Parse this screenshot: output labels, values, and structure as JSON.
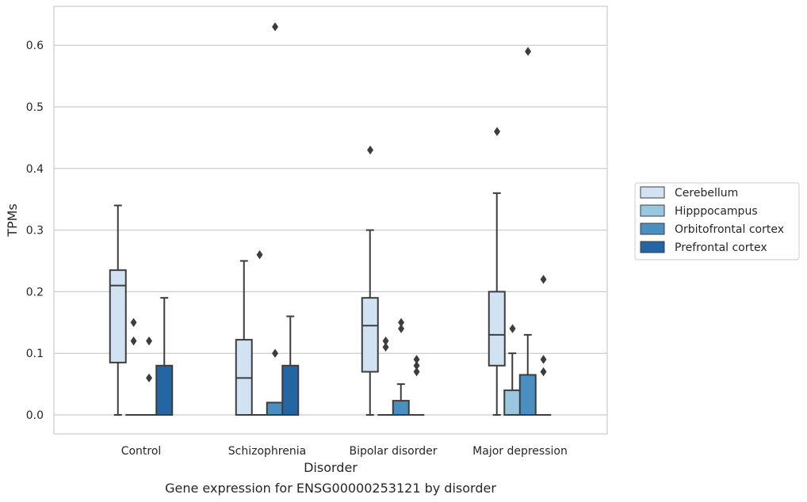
{
  "chart_data": {
    "type": "boxplot",
    "caption": "Gene expression for ENSG00000253121 by disorder",
    "xlabel": "Disorder",
    "ylabel": "TPMs",
    "ylim": [
      -0.031,
      0.662
    ],
    "yticks": [
      0.0,
      0.1,
      0.2,
      0.3,
      0.4,
      0.5,
      0.6
    ],
    "ytick_labels": [
      "0.0",
      "0.1",
      "0.2",
      "0.3",
      "0.4",
      "0.5",
      "0.6"
    ],
    "grid": "horizontal",
    "legend_position": "right",
    "categories": [
      "Control",
      "Schizophrenia",
      "Bipolar disorder",
      "Major depression"
    ],
    "series": [
      {
        "name": "Cerebellum",
        "color": "#d1e2f2",
        "boxes": [
          {
            "q1": 0.085,
            "median": 0.21,
            "q3": 0.235,
            "whislo": 0.0,
            "whishi": 0.34,
            "fliers": []
          },
          {
            "q1": 0.0,
            "median": 0.06,
            "q3": 0.122,
            "whislo": 0.0,
            "whishi": 0.25,
            "fliers": []
          },
          {
            "q1": 0.07,
            "median": 0.145,
            "q3": 0.19,
            "whislo": 0.0,
            "whishi": 0.3,
            "fliers": [
              0.43
            ]
          },
          {
            "q1": 0.08,
            "median": 0.13,
            "q3": 0.2,
            "whislo": 0.0,
            "whishi": 0.36,
            "fliers": [
              0.46
            ]
          }
        ]
      },
      {
        "name": "Hipppocampus",
        "color": "#9ac7e0",
        "boxes": [
          {
            "q1": 0.0,
            "median": 0.0,
            "q3": 0.0,
            "whislo": 0.0,
            "whishi": 0.0,
            "fliers": [
              0.15,
              0.12
            ]
          },
          {
            "q1": 0.0,
            "median": 0.0,
            "q3": 0.0,
            "whislo": 0.0,
            "whishi": 0.0,
            "fliers": [
              0.26
            ]
          },
          {
            "q1": 0.0,
            "median": 0.0,
            "q3": 0.0,
            "whislo": 0.0,
            "whishi": 0.0,
            "fliers": [
              0.12,
              0.11
            ]
          },
          {
            "q1": 0.0,
            "median": 0.0,
            "q3": 0.04,
            "whislo": 0.0,
            "whishi": 0.1,
            "fliers": [
              0.14
            ]
          }
        ]
      },
      {
        "name": "Orbitofrontal cortex",
        "color": "#4a8fc1",
        "boxes": [
          {
            "q1": 0.0,
            "median": 0.0,
            "q3": 0.0,
            "whislo": 0.0,
            "whishi": 0.0,
            "fliers": [
              0.12,
              0.06
            ]
          },
          {
            "q1": 0.0,
            "median": 0.0,
            "q3": 0.02,
            "whislo": 0.0,
            "whishi": 0.02,
            "fliers": [
              0.63,
              0.1
            ]
          },
          {
            "q1": 0.0,
            "median": 0.0,
            "q3": 0.023,
            "whislo": 0.0,
            "whishi": 0.05,
            "fliers": [
              0.15,
              0.14
            ]
          },
          {
            "q1": 0.0,
            "median": 0.0,
            "q3": 0.065,
            "whislo": 0.0,
            "whishi": 0.13,
            "fliers": [
              0.59
            ]
          }
        ]
      },
      {
        "name": "Prefrontal cortex",
        "color": "#2465a3",
        "boxes": [
          {
            "q1": 0.0,
            "median": 0.0,
            "q3": 0.08,
            "whislo": 0.0,
            "whishi": 0.19,
            "fliers": []
          },
          {
            "q1": 0.0,
            "median": 0.0,
            "q3": 0.08,
            "whislo": 0.0,
            "whishi": 0.16,
            "fliers": []
          },
          {
            "q1": 0.0,
            "median": 0.0,
            "q3": 0.0,
            "whislo": 0.0,
            "whishi": 0.0,
            "fliers": [
              0.09,
              0.08,
              0.07
            ]
          },
          {
            "q1": 0.0,
            "median": 0.0,
            "q3": 0.0,
            "whislo": 0.0,
            "whishi": 0.0,
            "fliers": [
              0.22,
              0.09,
              0.07
            ]
          }
        ]
      }
    ]
  }
}
